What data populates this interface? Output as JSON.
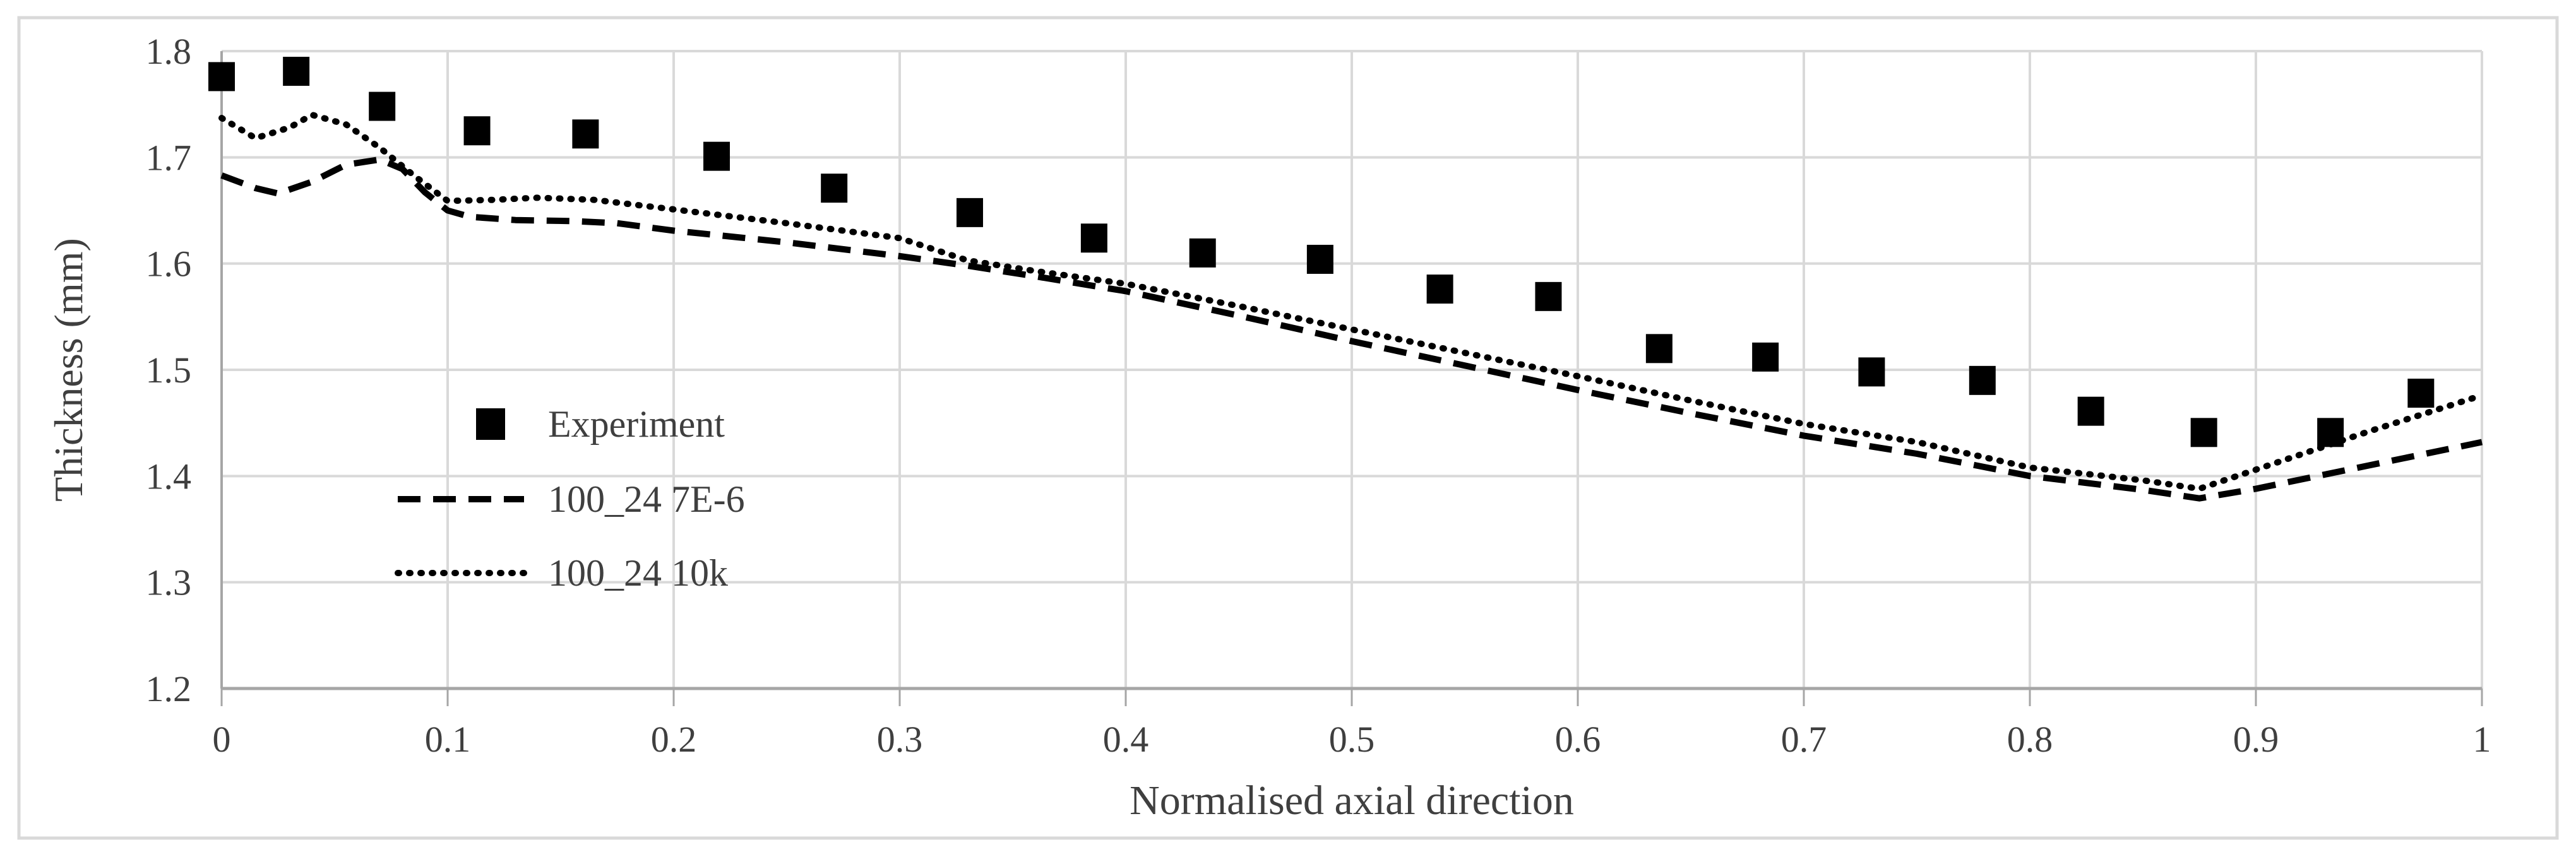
{
  "chart_data": {
    "type": "scatter",
    "title": "",
    "xlabel": "Normalised axial direction",
    "ylabel": "Thickness (mm)",
    "xlim": [
      0,
      1
    ],
    "ylim": [
      1.2,
      1.8
    ],
    "x_ticks": [
      0,
      0.1,
      0.2,
      0.3,
      0.4,
      0.5,
      0.6,
      0.7,
      0.8,
      0.9,
      1
    ],
    "x_tick_labels": [
      "0",
      "0.1",
      "0.2",
      "0.3",
      "0.4",
      "0.5",
      "0.6",
      "0.7",
      "0.8",
      "0.9",
      "1"
    ],
    "y_ticks": [
      1.2,
      1.3,
      1.4,
      1.5,
      1.6,
      1.7,
      1.8
    ],
    "y_tick_labels": [
      "1.2",
      "1.3",
      "1.4",
      "1.5",
      "1.6",
      "1.7",
      "1.8"
    ],
    "grid": true,
    "legend_position": "inside-left",
    "series": [
      {
        "name": "Experiment",
        "type": "scatter",
        "marker": "square",
        "color": "#000000",
        "points": [
          [
            0.0,
            1.776
          ],
          [
            0.033,
            1.781
          ],
          [
            0.071,
            1.748
          ],
          [
            0.113,
            1.725
          ],
          [
            0.161,
            1.722
          ],
          [
            0.219,
            1.701
          ],
          [
            0.271,
            1.671
          ],
          [
            0.331,
            1.648
          ],
          [
            0.386,
            1.624
          ],
          [
            0.434,
            1.61
          ],
          [
            0.486,
            1.604
          ],
          [
            0.539,
            1.576
          ],
          [
            0.587,
            1.569
          ],
          [
            0.636,
            1.52
          ],
          [
            0.683,
            1.512
          ],
          [
            0.73,
            1.498
          ],
          [
            0.779,
            1.49
          ],
          [
            0.827,
            1.461
          ],
          [
            0.877,
            1.441
          ],
          [
            0.933,
            1.441
          ],
          [
            0.973,
            1.478
          ]
        ]
      },
      {
        "name": "100_24 7E-6",
        "type": "line",
        "style": "dashed",
        "color": "#000000",
        "points": [
          [
            0.0,
            1.683
          ],
          [
            0.015,
            1.671
          ],
          [
            0.025,
            1.666
          ],
          [
            0.04,
            1.677
          ],
          [
            0.055,
            1.693
          ],
          [
            0.07,
            1.698
          ],
          [
            0.08,
            1.689
          ],
          [
            0.09,
            1.667
          ],
          [
            0.1,
            1.65
          ],
          [
            0.11,
            1.644
          ],
          [
            0.13,
            1.641
          ],
          [
            0.155,
            1.64
          ],
          [
            0.175,
            1.638
          ],
          [
            0.2,
            1.631
          ],
          [
            0.25,
            1.62
          ],
          [
            0.3,
            1.607
          ],
          [
            0.33,
            1.598
          ],
          [
            0.36,
            1.588
          ],
          [
            0.4,
            1.574
          ],
          [
            0.45,
            1.551
          ],
          [
            0.5,
            1.527
          ],
          [
            0.55,
            1.504
          ],
          [
            0.6,
            1.481
          ],
          [
            0.65,
            1.459
          ],
          [
            0.7,
            1.438
          ],
          [
            0.75,
            1.421
          ],
          [
            0.8,
            1.4
          ],
          [
            0.85,
            1.387
          ],
          [
            0.875,
            1.379
          ],
          [
            0.9,
            1.388
          ],
          [
            0.95,
            1.41
          ],
          [
            1.0,
            1.432
          ]
        ]
      },
      {
        "name": "100_24 10k",
        "type": "line",
        "style": "dotted",
        "color": "#000000",
        "points": [
          [
            0.0,
            1.737
          ],
          [
            0.015,
            1.718
          ],
          [
            0.03,
            1.728
          ],
          [
            0.04,
            1.74
          ],
          [
            0.055,
            1.731
          ],
          [
            0.07,
            1.709
          ],
          [
            0.085,
            1.683
          ],
          [
            0.1,
            1.659
          ],
          [
            0.12,
            1.66
          ],
          [
            0.14,
            1.662
          ],
          [
            0.165,
            1.66
          ],
          [
            0.2,
            1.651
          ],
          [
            0.25,
            1.638
          ],
          [
            0.3,
            1.624
          ],
          [
            0.33,
            1.603
          ],
          [
            0.36,
            1.593
          ],
          [
            0.4,
            1.581
          ],
          [
            0.45,
            1.56
          ],
          [
            0.5,
            1.538
          ],
          [
            0.55,
            1.516
          ],
          [
            0.6,
            1.494
          ],
          [
            0.65,
            1.471
          ],
          [
            0.7,
            1.449
          ],
          [
            0.75,
            1.432
          ],
          [
            0.8,
            1.408
          ],
          [
            0.85,
            1.396
          ],
          [
            0.875,
            1.388
          ],
          [
            0.9,
            1.406
          ],
          [
            0.95,
            1.442
          ],
          [
            1.0,
            1.476
          ]
        ]
      }
    ]
  },
  "colors": {
    "background": "#ffffff",
    "figure_border": "#d9d9d9",
    "gridline": "#d9d9d9",
    "axis_line": "#a6a6a6",
    "tick_text": "#3f3f3f",
    "series": "#000000"
  }
}
